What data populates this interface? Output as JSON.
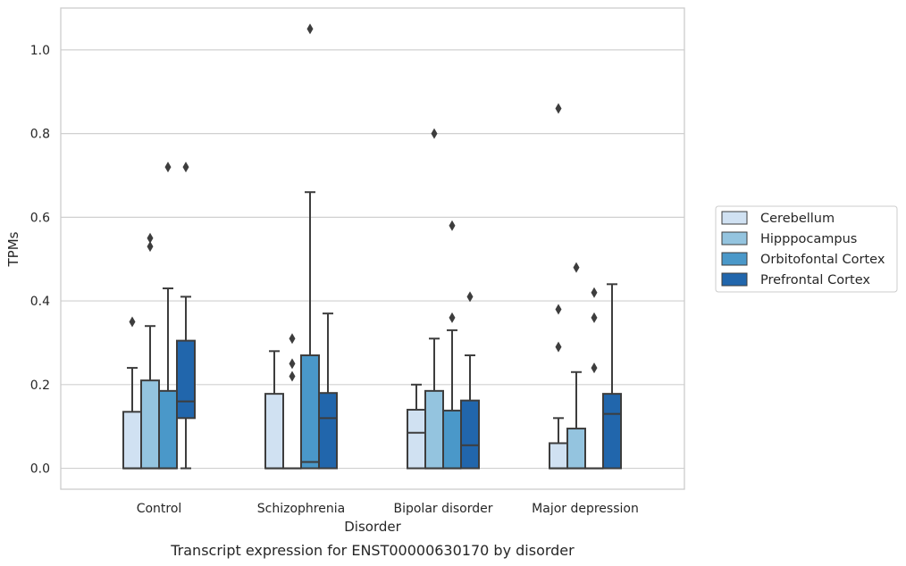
{
  "chart_data": {
    "type": "box",
    "caption": "Transcript expression for ENST00000630170 by disorder",
    "xlabel": "Disorder",
    "ylabel": "TPMs",
    "ylim": [
      -0.05,
      1.1
    ],
    "yticks": [
      "0.0",
      "0.2",
      "0.4",
      "0.6",
      "0.8",
      "1.0"
    ],
    "ytick_values": [
      0,
      0.2,
      0.4,
      0.6,
      0.8,
      1.0
    ],
    "grid": "horizontal",
    "legend_position": "right",
    "categories": [
      "Control",
      "Schizophrenia",
      "Bipolar disorder",
      "Major depression"
    ],
    "series": [
      {
        "name": "Cerebellum",
        "color": "#d0e1f2",
        "boxes": [
          {
            "lw": 0,
            "q1": 0,
            "med": 0,
            "q3": 0.135,
            "uw": 0.24,
            "fliers": [
              0.35
            ]
          },
          {
            "lw": 0,
            "q1": 0,
            "med": 0,
            "q3": 0.178,
            "uw": 0.28,
            "fliers": []
          },
          {
            "lw": 0,
            "q1": 0,
            "med": 0.085,
            "q3": 0.14,
            "uw": 0.2,
            "fliers": []
          },
          {
            "lw": 0,
            "q1": 0,
            "med": 0,
            "q3": 0.06,
            "uw": 0.12,
            "fliers": [
              0.29,
              0.38,
              0.86
            ]
          }
        ]
      },
      {
        "name": "Hipppocampus",
        "color": "#94c4df",
        "boxes": [
          {
            "lw": 0,
            "q1": 0,
            "med": 0,
            "q3": 0.21,
            "uw": 0.34,
            "fliers": [
              0.53,
              0.55
            ]
          },
          {
            "lw": 0,
            "q1": 0,
            "med": 0,
            "q3": 0,
            "uw": 0,
            "fliers": [
              0.22,
              0.25,
              0.31
            ]
          },
          {
            "lw": 0,
            "q1": 0,
            "med": 0,
            "q3": 0.185,
            "uw": 0.31,
            "fliers": [
              0.8
            ]
          },
          {
            "lw": 0,
            "q1": 0,
            "med": 0,
            "q3": 0.095,
            "uw": 0.23,
            "fliers": [
              0.48
            ]
          }
        ]
      },
      {
        "name": "Orbitofontal Cortex",
        "color": "#4a98c9",
        "boxes": [
          {
            "lw": 0,
            "q1": 0,
            "med": 0,
            "q3": 0.185,
            "uw": 0.43,
            "fliers": [
              0.72
            ]
          },
          {
            "lw": 0,
            "q1": 0,
            "med": 0.015,
            "q3": 0.27,
            "uw": 0.66,
            "fliers": [
              1.05
            ]
          },
          {
            "lw": 0,
            "q1": 0,
            "med": 0,
            "q3": 0.138,
            "uw": 0.33,
            "fliers": [
              0.36,
              0.58
            ]
          },
          {
            "lw": 0,
            "q1": 0,
            "med": 0,
            "q3": 0,
            "uw": 0,
            "fliers": [
              0.24,
              0.36,
              0.42
            ]
          }
        ]
      },
      {
        "name": "Prefrontal Cortex",
        "color": "#2166ac",
        "boxes": [
          {
            "lw": 0,
            "q1": 0.12,
            "med": 0.16,
            "q3": 0.305,
            "uw": 0.41,
            "fliers": [
              0.72
            ]
          },
          {
            "lw": 0,
            "q1": 0,
            "med": 0.12,
            "q3": 0.18,
            "uw": 0.37,
            "fliers": []
          },
          {
            "lw": 0,
            "q1": 0,
            "med": 0.055,
            "q3": 0.162,
            "uw": 0.27,
            "fliers": [
              0.41
            ]
          },
          {
            "lw": 0,
            "q1": 0,
            "med": 0.13,
            "q3": 0.178,
            "uw": 0.44,
            "fliers": []
          }
        ]
      }
    ]
  }
}
